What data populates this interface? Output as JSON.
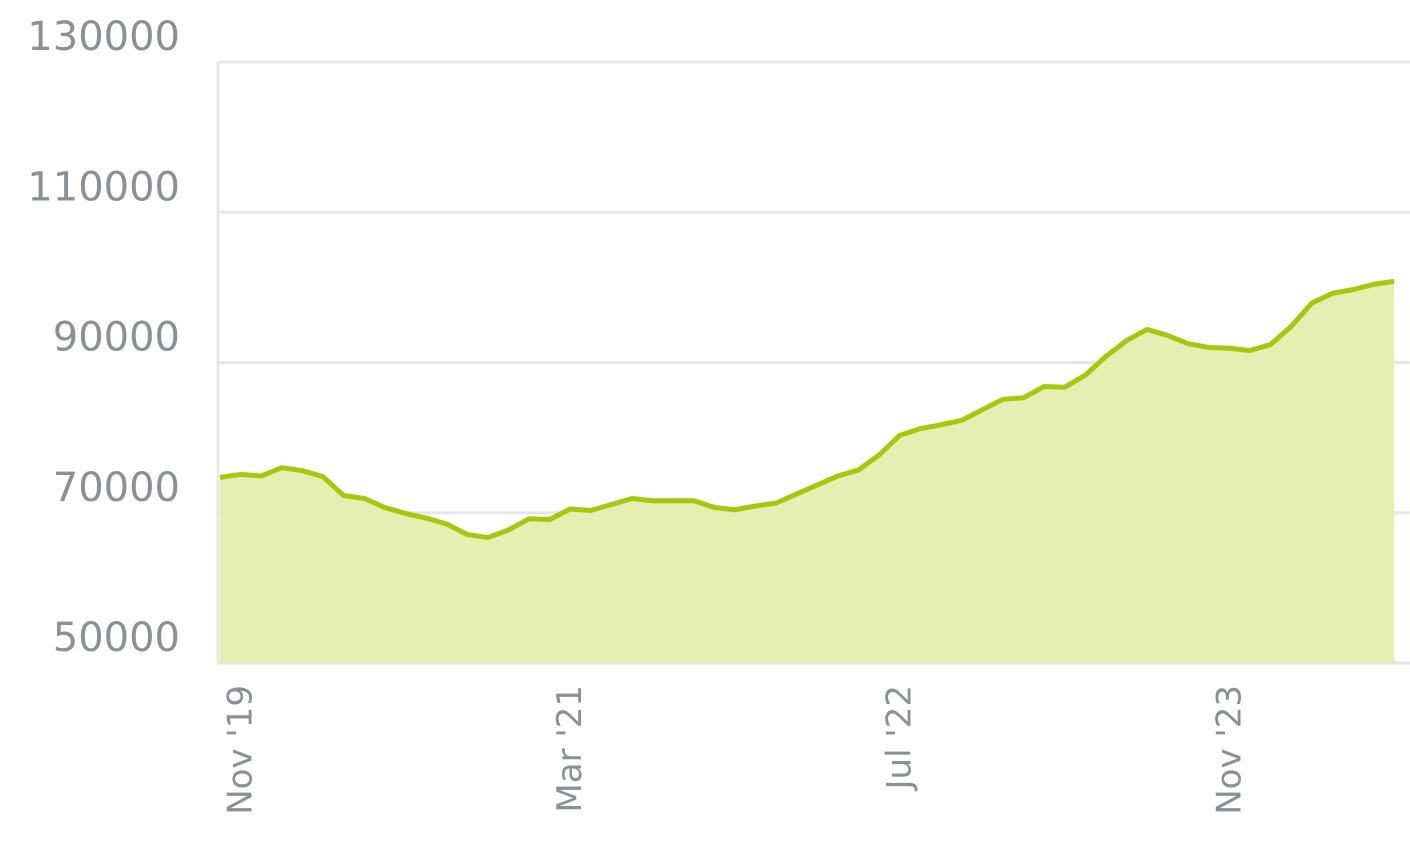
{
  "chart_data": {
    "type": "area",
    "categories": [
      "Nov '19",
      null,
      null,
      null,
      null,
      null,
      null,
      null,
      null,
      null,
      null,
      null,
      null,
      null,
      null,
      null,
      "Mar '21",
      null,
      null,
      null,
      null,
      null,
      null,
      null,
      null,
      null,
      null,
      null,
      null,
      null,
      null,
      null,
      "Jul '22",
      null,
      null,
      null,
      null,
      null,
      null,
      null,
      null,
      null,
      null,
      null,
      null,
      null,
      null,
      null,
      "Nov '23",
      null,
      null,
      null,
      null,
      null,
      null,
      null,
      null,
      null
    ],
    "series": [
      {
        "color": "#a5c80f",
        "fill": "#e4efb1",
        "values": [
          74700,
          75100,
          74900,
          76000,
          75600,
          74800,
          72300,
          71900,
          70700,
          69900,
          69300,
          68500,
          67100,
          66700,
          67700,
          69200,
          69100,
          70500,
          70300,
          71100,
          71900,
          71600,
          71600,
          71600,
          70700,
          70400,
          70900,
          71300,
          72500,
          73700,
          74900,
          75700,
          77700,
          80300,
          81200,
          81700,
          82300,
          83700,
          85100,
          85300,
          86800,
          86700,
          88300,
          90800,
          92900,
          94400,
          93600,
          92500,
          92000,
          91900,
          91600,
          92400,
          94800,
          97900,
          99200,
          99700,
          100400,
          100800
        ]
      }
    ],
    "ylim": [
      50000,
      130000
    ],
    "yticks": [
      50000,
      70000,
      90000,
      110000,
      130000
    ],
    "grid": true
  }
}
